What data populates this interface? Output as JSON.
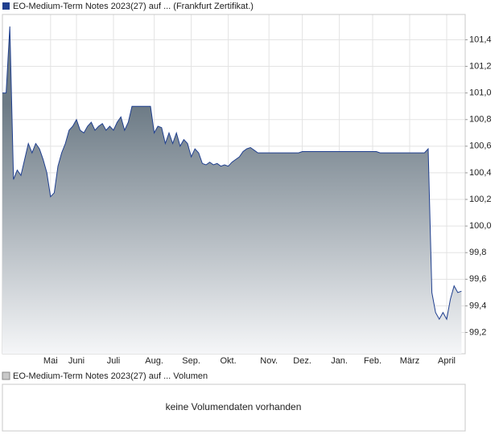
{
  "chart_data": {
    "type": "area",
    "series": [
      {
        "name": "EO-Medium-Term Notes 2023(27) auf ... (Frankfurt Zertifikat.)",
        "color": "#1f3f8f",
        "values": [
          101.0,
          101.0,
          101.5,
          100.35,
          100.42,
          100.38,
          100.5,
          100.62,
          100.55,
          100.62,
          100.58,
          100.5,
          100.4,
          100.22,
          100.25,
          100.45,
          100.55,
          100.62,
          100.72,
          100.75,
          100.8,
          100.72,
          100.7,
          100.75,
          100.78,
          100.72,
          100.75,
          100.77,
          100.72,
          100.75,
          100.72,
          100.78,
          100.82,
          100.72,
          100.78,
          100.9,
          100.9,
          100.9,
          100.9,
          100.9,
          100.9,
          100.7,
          100.75,
          100.74,
          100.62,
          100.7,
          100.62,
          100.7,
          100.6,
          100.65,
          100.62,
          100.52,
          100.58,
          100.55,
          100.47,
          100.46,
          100.48,
          100.46,
          100.47,
          100.45,
          100.46,
          100.45,
          100.48,
          100.5,
          100.52,
          100.56,
          100.58,
          100.59,
          100.57,
          100.55,
          100.55,
          100.55,
          100.55,
          100.55,
          100.55,
          100.55,
          100.55,
          100.55,
          100.55,
          100.55,
          100.55,
          100.56,
          100.56,
          100.56,
          100.56,
          100.56,
          100.56,
          100.56,
          100.56,
          100.56,
          100.56,
          100.56,
          100.56,
          100.56,
          100.56,
          100.56,
          100.56,
          100.56,
          100.56,
          100.56,
          100.56,
          100.56,
          100.55,
          100.55,
          100.55,
          100.55,
          100.55,
          100.55,
          100.55,
          100.55,
          100.55,
          100.55,
          100.55,
          100.55,
          100.55,
          100.58,
          99.5,
          99.35,
          99.3,
          99.35,
          99.3,
          99.45,
          99.55,
          99.5,
          99.51
        ]
      }
    ],
    "categories": [
      null,
      null,
      null,
      null,
      null,
      null,
      null,
      null,
      null,
      null,
      null,
      null,
      null,
      "Mai",
      null,
      null,
      null,
      null,
      null,
      null,
      "Juni",
      null,
      null,
      null,
      null,
      null,
      null,
      null,
      null,
      null,
      "Juli",
      null,
      null,
      null,
      null,
      null,
      null,
      null,
      null,
      null,
      null,
      "Aug.",
      null,
      null,
      null,
      null,
      null,
      null,
      null,
      null,
      null,
      "Sep.",
      null,
      null,
      null,
      null,
      null,
      null,
      null,
      null,
      null,
      "Okt.",
      null,
      null,
      null,
      null,
      null,
      null,
      null,
      null,
      null,
      null,
      "Nov.",
      null,
      null,
      null,
      null,
      null,
      null,
      null,
      null,
      "Dez.",
      null,
      null,
      null,
      null,
      null,
      null,
      null,
      null,
      null,
      "Jan.",
      null,
      null,
      null,
      null,
      null,
      null,
      null,
      null,
      "Feb.",
      null,
      null,
      null,
      null,
      null,
      null,
      null,
      null,
      null,
      "März",
      null,
      null,
      null,
      null,
      null,
      null,
      null,
      null,
      null,
      "April",
      null,
      null,
      null,
      null
    ],
    "ylim": [
      99.04,
      101.59
    ],
    "yticks": [
      {
        "value": 99.2,
        "label": "99,2"
      },
      {
        "value": 99.4,
        "label": "99,4"
      },
      {
        "value": 99.6,
        "label": "99,6"
      },
      {
        "value": 99.8,
        "label": "99,8"
      },
      {
        "value": 100.0,
        "label": "100,0"
      },
      {
        "value": 100.2,
        "label": "100,2"
      },
      {
        "value": 100.4,
        "label": "100,4"
      },
      {
        "value": 100.6,
        "label": "100,6"
      },
      {
        "value": 100.8,
        "label": "100,8"
      },
      {
        "value": 101.0,
        "label": "101,0"
      },
      {
        "value": 101.2,
        "label": "101,2"
      },
      {
        "value": 101.4,
        "label": "101,4"
      }
    ],
    "grid": true,
    "area_colors": [
      "#6c7a85",
      "#f5f6f8"
    ]
  },
  "volume_panel": {
    "legend": "EO-Medium-Term Notes 2023(27) auf ... Volumen",
    "message": "keine Volumendaten vorhanden",
    "legend_color": "#c8c8c8"
  }
}
